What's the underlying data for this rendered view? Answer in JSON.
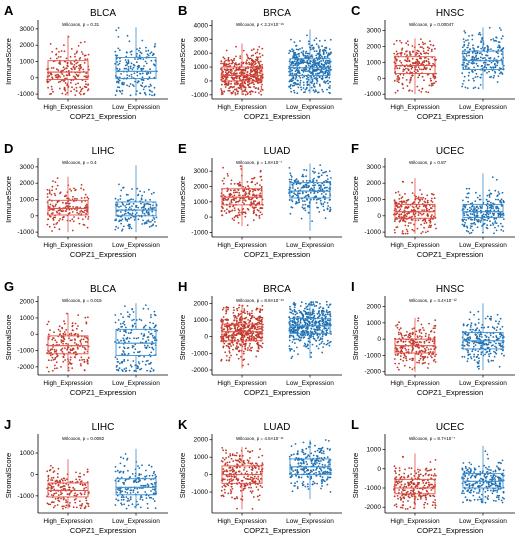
{
  "figure": {
    "colors": {
      "high": "#c0392b",
      "low": "#1f6fb0",
      "box_high": "#e4514a",
      "box_low": "#3b8fd0"
    },
    "x_labels": [
      "High_Expression",
      "Low_Expression"
    ],
    "x_title": "COPZ1_Expression"
  },
  "chart_data": [
    {
      "type": "box",
      "letter": "A",
      "title": "BLCA",
      "ylabel": "ImmuneScore",
      "annotation": "Wilcoxon, p = 0.31",
      "yticks": [
        -1000,
        0,
        1000,
        2000,
        3000
      ],
      "ylim": [
        -1300,
        3300
      ],
      "n_points": 200,
      "series": [
        {
          "name": "High_Expression",
          "q1": -100,
          "median": 350,
          "q3": 1050,
          "whisker_low": -1100,
          "whisker_high": 2600
        },
        {
          "name": "Low_Expression",
          "q1": -50,
          "median": 400,
          "q3": 1250,
          "whisker_low": -1100,
          "whisker_high": 3100
        }
      ]
    },
    {
      "type": "box",
      "letter": "B",
      "title": "BRCA",
      "ylabel": "ImmuneScore",
      "annotation": "Wilcoxon, p < 2.2×10⁻¹⁶",
      "yticks": [
        -1000,
        0,
        1000,
        2000,
        3000,
        4000
      ],
      "ylim": [
        -1300,
        4100
      ],
      "n_points": 500,
      "series": [
        {
          "name": "High_Expression",
          "q1": 0,
          "median": 400,
          "q3": 1000,
          "whisker_low": -1000,
          "whisker_high": 2700
        },
        {
          "name": "Low_Expression",
          "q1": 400,
          "median": 950,
          "q3": 1600,
          "whisker_low": -900,
          "whisker_high": 3700
        }
      ]
    },
    {
      "type": "box",
      "letter": "C",
      "title": "HNSC",
      "ylabel": "ImmuneScore",
      "annotation": "Wilcoxon, p = 0.00047",
      "yticks": [
        -1000,
        0,
        1000,
        2000,
        3000
      ],
      "ylim": [
        -1300,
        3400
      ],
      "n_points": 250,
      "series": [
        {
          "name": "High_Expression",
          "q1": 300,
          "median": 800,
          "q3": 1350,
          "whisker_low": -1000,
          "whisker_high": 2500
        },
        {
          "name": "Low_Expression",
          "q1": 550,
          "median": 1100,
          "q3": 1700,
          "whisker_low": -700,
          "whisker_high": 3200
        }
      ]
    },
    {
      "type": "box",
      "letter": "D",
      "title": "LIHC",
      "ylabel": "ImmuneScore",
      "annotation": "Wilcoxon, p = 0.4",
      "yticks": [
        -1000,
        0,
        1000,
        2000,
        3000
      ],
      "ylim": [
        -1300,
        3300
      ],
      "n_points": 180,
      "series": [
        {
          "name": "High_Expression",
          "q1": 50,
          "median": 450,
          "q3": 950,
          "whisker_low": -1000,
          "whisker_high": 2400
        },
        {
          "name": "Low_Expression",
          "q1": 0,
          "median": 350,
          "q3": 850,
          "whisker_low": -1000,
          "whisker_high": 3100
        }
      ]
    },
    {
      "type": "box",
      "letter": "E",
      "title": "LUAD",
      "ylabel": "ImmuneScore",
      "annotation": "Wilcoxon, p = 1.8×10⁻⁷",
      "yticks": [
        -1000,
        0,
        1000,
        2000,
        3000
      ],
      "ylim": [
        -1300,
        3600
      ],
      "n_points": 250,
      "series": [
        {
          "name": "High_Expression",
          "q1": 800,
          "median": 1300,
          "q3": 1850,
          "whisker_low": -600,
          "whisker_high": 3400
        },
        {
          "name": "Low_Expression",
          "q1": 1250,
          "median": 1700,
          "q3": 2250,
          "whisker_low": -900,
          "whisker_high": 3500
        }
      ]
    },
    {
      "type": "box",
      "letter": "F",
      "title": "UCEC",
      "ylabel": "ImmuneScore",
      "annotation": "Wilcoxon, p = 0.87",
      "yticks": [
        -1000,
        0,
        1000,
        2000,
        3000
      ],
      "ylim": [
        -1300,
        3300
      ],
      "n_points": 250,
      "series": [
        {
          "name": "High_Expression",
          "q1": -150,
          "median": 250,
          "q3": 700,
          "whisker_low": -1100,
          "whisker_high": 2300
        },
        {
          "name": "Low_Expression",
          "q1": -100,
          "median": 250,
          "q3": 700,
          "whisker_low": -1100,
          "whisker_high": 2600
        }
      ]
    },
    {
      "type": "box",
      "letter": "G",
      "title": "BLCA",
      "ylabel": "StromalScore",
      "annotation": "Wilcoxon, p = 0.015",
      "yticks": [
        -2000,
        -1000,
        0,
        1000,
        2000
      ],
      "ylim": [
        -2500,
        2100
      ],
      "n_points": 200,
      "series": [
        {
          "name": "High_Expression",
          "q1": -1200,
          "median": -700,
          "q3": -100,
          "whisker_low": -2300,
          "whisker_high": 1300
        },
        {
          "name": "Low_Expression",
          "q1": -1300,
          "median": -550,
          "q3": 300,
          "whisker_low": -2300,
          "whisker_high": 1900
        }
      ]
    },
    {
      "type": "box",
      "letter": "H",
      "title": "BRCA",
      "ylabel": "StromalScore",
      "annotation": "Wilcoxon, p = 8.8×10⁻¹⁶",
      "yticks": [
        -2000,
        -1000,
        0,
        1000,
        2000
      ],
      "ylim": [
        -2300,
        2200
      ],
      "n_points": 500,
      "series": [
        {
          "name": "High_Expression",
          "q1": -250,
          "median": 300,
          "q3": 750,
          "whisker_low": -1900,
          "whisker_high": 1900
        },
        {
          "name": "Low_Expression",
          "q1": 200,
          "median": 650,
          "q3": 1100,
          "whisker_low": -1300,
          "whisker_high": 2100
        }
      ]
    },
    {
      "type": "box",
      "letter": "I",
      "title": "HNSC",
      "ylabel": "StromalScore",
      "annotation": "Wilcoxon, p = 4.4×10⁻¹²",
      "yticks": [
        -2000,
        -1000,
        0,
        1000,
        2000
      ],
      "ylim": [
        -2200,
        2400
      ],
      "n_points": 250,
      "series": [
        {
          "name": "High_Expression",
          "q1": -850,
          "median": -400,
          "q3": 0,
          "whisker_low": -2000,
          "whisker_high": 1300
        },
        {
          "name": "Low_Expression",
          "q1": -600,
          "median": -100,
          "q3": 400,
          "whisker_low": -1900,
          "whisker_high": 2200
        }
      ]
    },
    {
      "type": "box",
      "letter": "J",
      "title": "LIHC",
      "ylabel": "StromalScore",
      "annotation": "Wilcoxon, p = 0.0082",
      "yticks": [
        -1000,
        0,
        1000
      ],
      "ylim": [
        -1800,
        1700
      ],
      "n_points": 180,
      "series": [
        {
          "name": "High_Expression",
          "q1": -1050,
          "median": -750,
          "q3": -400,
          "whisker_low": -1600,
          "whisker_high": 700
        },
        {
          "name": "Low_Expression",
          "q1": -950,
          "median": -600,
          "q3": -200,
          "whisker_low": -1600,
          "whisker_high": 1200
        }
      ]
    },
    {
      "type": "box",
      "letter": "K",
      "title": "LUAD",
      "ylabel": "StromalScore",
      "annotation": "Wilcoxon, p = 4.6×10⁻¹¹",
      "yticks": [
        -1000,
        0,
        1000,
        2000
      ],
      "ylim": [
        -2200,
        2100
      ],
      "n_points": 250,
      "series": [
        {
          "name": "High_Expression",
          "q1": -500,
          "median": 0,
          "q3": 500,
          "whisker_low": -2000,
          "whisker_high": 1600
        },
        {
          "name": "Low_Expression",
          "q1": 0,
          "median": 450,
          "q3": 900,
          "whisker_low": -1400,
          "whisker_high": 2000
        }
      ]
    },
    {
      "type": "box",
      "letter": "L",
      "title": "UCEC",
      "ylabel": "StromalScore",
      "annotation": "Wilcoxon, p = 8.7×10⁻⁷",
      "yticks": [
        -2000,
        -1000,
        0,
        1000
      ],
      "ylim": [
        -2300,
        1600
      ],
      "n_points": 250,
      "series": [
        {
          "name": "High_Expression",
          "q1": -1300,
          "median": -1000,
          "q3": -550,
          "whisker_low": -2100,
          "whisker_high": 800
        },
        {
          "name": "Low_Expression",
          "q1": -1000,
          "median": -650,
          "q3": -250,
          "whisker_low": -1800,
          "whisker_high": 1200
        }
      ]
    }
  ]
}
